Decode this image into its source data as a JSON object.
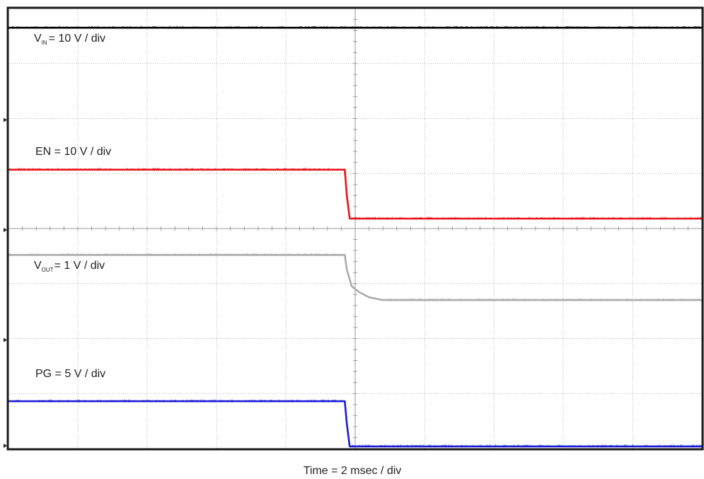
{
  "chart_data": {
    "type": "line",
    "xlabel": "Time = 2 msec / div",
    "x_divisions": 10,
    "y_divisions": 8,
    "grid": true,
    "colors": {
      "VIN": "#000000",
      "EN": "#e8131b",
      "VOUT": "#ababab",
      "PG": "#1c1cd6",
      "frame": "#1a1a1a",
      "grid": "#9a9a9a"
    },
    "series": [
      {
        "name": "VIN",
        "label": {
          "main": "V",
          "sub": "IN",
          "rest": "= 10 V / div"
        },
        "color": "#000000",
        "x": [
          0,
          10
        ],
        "y": [
          7.65,
          7.65
        ]
      },
      {
        "name": "EN",
        "label": {
          "main": "EN = 10 V / div",
          "sub": "",
          "rest": ""
        },
        "color": "#e8131b",
        "x": [
          0,
          4.85,
          4.88,
          4.92,
          10
        ],
        "y": [
          5.07,
          5.07,
          4.6,
          4.18,
          4.18
        ]
      },
      {
        "name": "VOUT",
        "label": {
          "main": "V",
          "sub": "OUT",
          "rest": "= 1 V / div"
        },
        "color": "#ababab",
        "x": [
          0,
          4.85,
          4.88,
          4.95,
          5.05,
          5.2,
          5.4,
          10
        ],
        "y": [
          3.52,
          3.52,
          3.25,
          2.95,
          2.85,
          2.75,
          2.7,
          2.7
        ]
      },
      {
        "name": "PG",
        "label": {
          "main": "PG = 5 V / div",
          "sub": "",
          "rest": ""
        },
        "color": "#1c1cd6",
        "x": [
          0,
          4.85,
          4.88,
          4.92,
          10
        ],
        "y": [
          0.86,
          0.86,
          0.45,
          0.04,
          0.04
        ]
      }
    ]
  }
}
